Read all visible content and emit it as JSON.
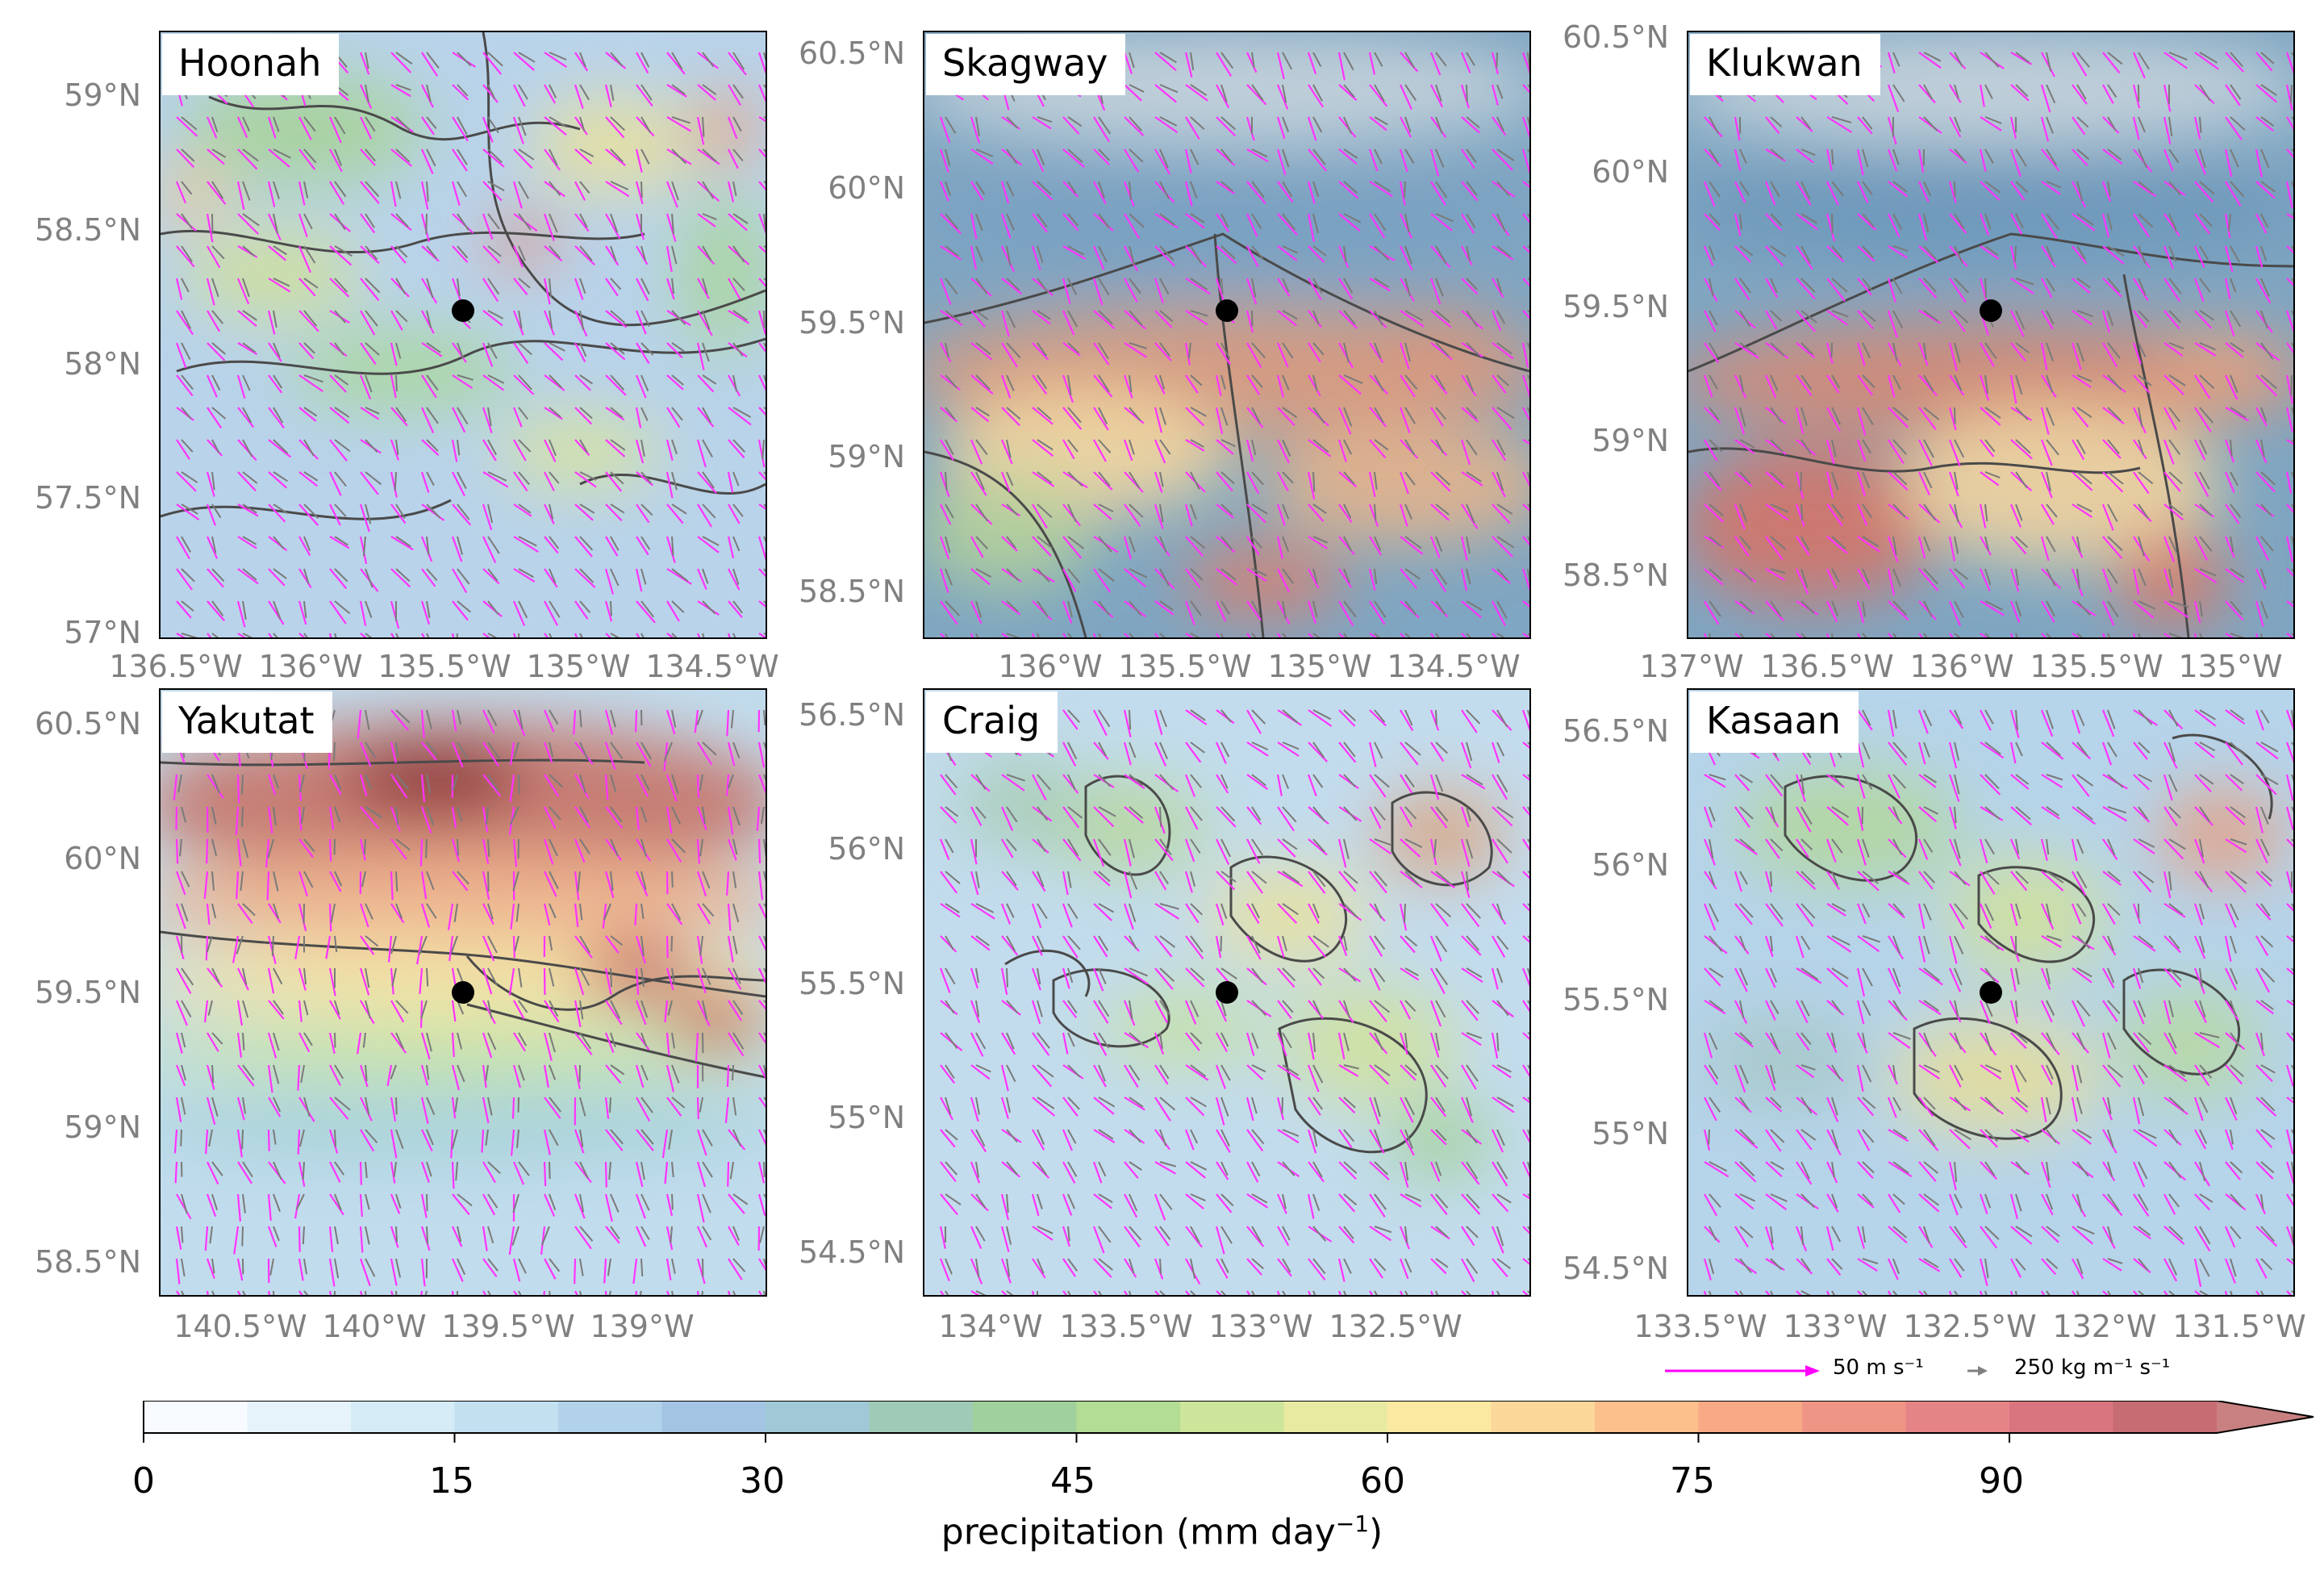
{
  "panels": [
    {
      "name": "Hoonah",
      "yticks": [
        "59°N",
        "58.5°N",
        "58°N",
        "57.5°N",
        "57°N"
      ],
      "xticks": [
        "136.5°W",
        "136°W",
        "135.5°W",
        "135°W",
        "134.5°W"
      ]
    },
    {
      "name": "Skagway",
      "yticks": [
        "60.5°N",
        "60°N",
        "59.5°N",
        "59°N",
        "58.5°N"
      ],
      "xticks": [
        "136°W",
        "135.5°W",
        "135°W",
        "134.5°W"
      ]
    },
    {
      "name": "Klukwan",
      "yticks": [
        "60.5°N",
        "60°N",
        "59.5°N",
        "59°N",
        "58.5°N"
      ],
      "xticks": [
        "137°W",
        "136.5°W",
        "136°W",
        "135.5°W",
        "135°W"
      ]
    },
    {
      "name": "Yakutat",
      "yticks": [
        "60.5°N",
        "60°N",
        "59.5°N",
        "59°N",
        "58.5°N"
      ],
      "xticks": [
        "140.5°W",
        "140°W",
        "139.5°W",
        "139°W"
      ]
    },
    {
      "name": "Craig",
      "yticks": [
        "56.5°N",
        "56°N",
        "55.5°N",
        "55°N",
        "54.5°N"
      ],
      "xticks": [
        "134°W",
        "133.5°W",
        "133°W",
        "132.5°W"
      ]
    },
    {
      "name": "Kasaan",
      "yticks": [
        "56.5°N",
        "56°N",
        "55.5°N",
        "55°N",
        "54.5°N"
      ],
      "xticks": [
        "133.5°W",
        "133°W",
        "132.5°W",
        "132°W",
        "131.5°W"
      ]
    }
  ],
  "vector_legend": {
    "wind_label": "50 m s⁻¹",
    "ivt_label": "250 kg m⁻¹ s⁻¹",
    "wind_color": "#ff00ff",
    "ivt_color": "#808080"
  },
  "colorbar": {
    "label": "precipitation (mm day",
    "label_exp": "−1",
    "label_close": ")",
    "ticks": [
      "0",
      "15",
      "30",
      "45",
      "60",
      "75",
      "90"
    ],
    "min": 0,
    "max": 100,
    "step": 5,
    "extend": "max",
    "colors": [
      "#f7fbff",
      "#e6f3fa",
      "#d5ebf6",
      "#c3e0f1",
      "#b2d2ea",
      "#a3c4e3",
      "#a0c8d6",
      "#9fcab6",
      "#a0d19d",
      "#b3dc94",
      "#cde49b",
      "#e8eaa2",
      "#fce9a1",
      "#fcd79a",
      "#fbc08b",
      "#f8a985",
      "#ef9585",
      "#e48487",
      "#d9757f",
      "#c66c72"
    ],
    "extend_color": "#c98080"
  },
  "station_marker_color": "#000000"
}
